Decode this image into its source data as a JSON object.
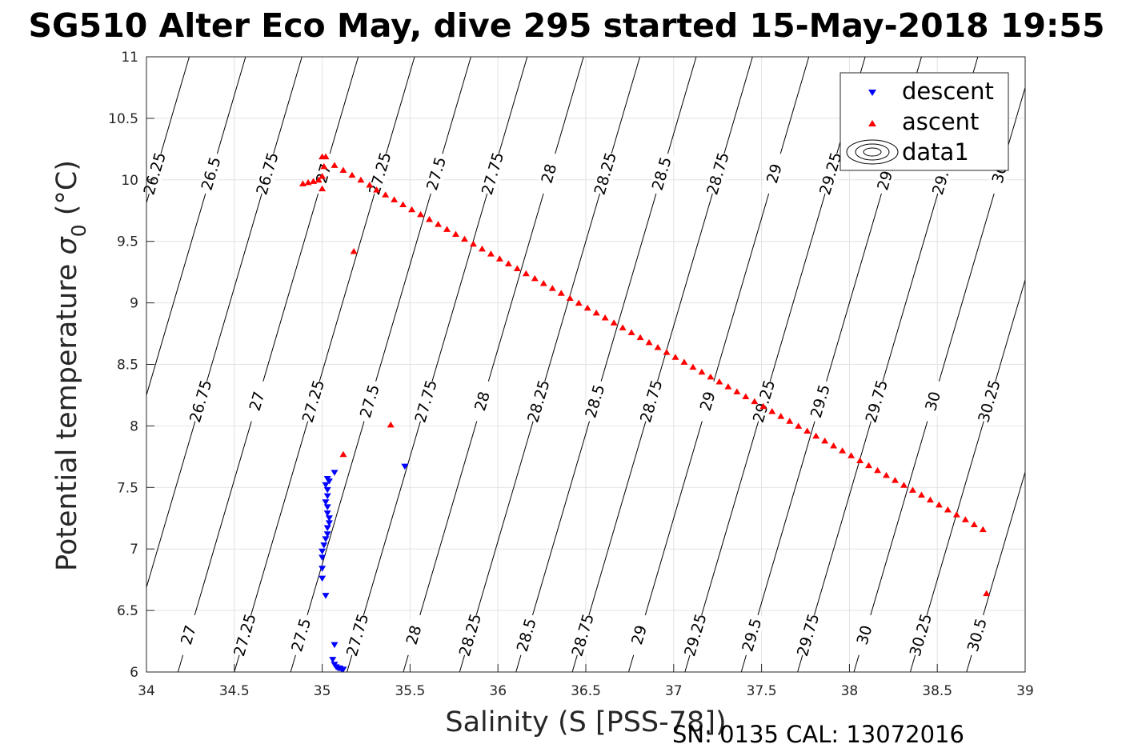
{
  "chart_data": {
    "type": "scatter",
    "title": "SG510 Alter Eco May, dive 295 started 15-May-2018 19:55",
    "xlabel": "Salinity (S [PSS-78])",
    "ylabel": "Potential temperature σ₀ (°C)",
    "ylabel_main": "Potential temperature ",
    "ylabel_sigma": "σ",
    "ylabel_sub": "0",
    "ylabel_unit": " (°C)",
    "xlim": [
      34,
      39
    ],
    "ylim": [
      6,
      11
    ],
    "grid": true,
    "legend_position": "top-right",
    "footer": "SN: 0135  CAL: 13072016",
    "x_ticks": [
      "34",
      "34.5",
      "35",
      "35.5",
      "36",
      "36.5",
      "37",
      "37.5",
      "38",
      "38.5",
      "39"
    ],
    "y_ticks": [
      "6",
      "6.5",
      "7",
      "7.5",
      "8",
      "8.5",
      "9",
      "9.5",
      "10",
      "10.5",
      "11"
    ],
    "legend": [
      {
        "name": "descent",
        "marker": "triangle-down",
        "color": "#0000ff"
      },
      {
        "name": "ascent",
        "marker": "triangle-up",
        "color": "#ff0000"
      },
      {
        "name": "data1",
        "marker": "contour",
        "color": "#000000"
      }
    ],
    "contours": {
      "levels": [
        "26.25",
        "26.5",
        "26.75",
        "27",
        "27.25",
        "27.5",
        "27.75",
        "28",
        "28.25",
        "28.5",
        "28.75",
        "29",
        "29.25",
        "29.5",
        "29.75",
        "30",
        "30.25",
        "30.5"
      ],
      "color": "#000000"
    },
    "series": [
      {
        "name": "descent",
        "color": "#0000ff",
        "marker": "triangle-down",
        "points": [
          [
            35.47,
            7.67
          ],
          [
            35.07,
            7.62
          ],
          [
            35.03,
            7.57
          ],
          [
            35.04,
            7.55
          ],
          [
            35.02,
            7.52
          ],
          [
            35.03,
            7.48
          ],
          [
            35.03,
            7.43
          ],
          [
            35.02,
            7.38
          ],
          [
            35.03,
            7.34
          ],
          [
            35.03,
            7.29
          ],
          [
            35.04,
            7.25
          ],
          [
            35.04,
            7.21
          ],
          [
            35.03,
            7.17
          ],
          [
            35.03,
            7.12
          ],
          [
            35.02,
            7.08
          ],
          [
            35.01,
            7.03
          ],
          [
            35.0,
            6.98
          ],
          [
            35.0,
            6.93
          ],
          [
            35.0,
            6.84
          ],
          [
            35.0,
            6.76
          ],
          [
            35.02,
            6.62
          ],
          [
            35.07,
            6.22
          ],
          [
            35.06,
            6.1
          ],
          [
            35.07,
            6.06
          ],
          [
            35.08,
            6.04
          ],
          [
            35.09,
            6.03
          ],
          [
            35.1,
            6.03
          ],
          [
            35.11,
            6.02
          ],
          [
            35.12,
            6.02
          ]
        ]
      },
      {
        "name": "ascent",
        "color": "#ff0000",
        "marker": "triangle-up",
        "points": [
          [
            35.0,
            10.19
          ],
          [
            35.02,
            10.19
          ],
          [
            35.01,
            10.11
          ],
          [
            35.0,
            10.03
          ],
          [
            34.98,
            10.0
          ],
          [
            34.95,
            9.99
          ],
          [
            34.92,
            9.98
          ],
          [
            34.89,
            9.97
          ],
          [
            35.0,
            9.93
          ],
          [
            35.12,
            7.77
          ],
          [
            35.39,
            8.01
          ],
          [
            35.18,
            9.42
          ],
          [
            35.07,
            10.12
          ],
          [
            35.12,
            10.08
          ],
          [
            35.17,
            10.04
          ],
          [
            35.22,
            10.0
          ],
          [
            35.27,
            9.96
          ],
          [
            35.31,
            9.92
          ],
          [
            35.36,
            9.88
          ],
          [
            35.41,
            9.84
          ],
          [
            35.46,
            9.8
          ],
          [
            35.51,
            9.76
          ],
          [
            35.56,
            9.72
          ],
          [
            35.61,
            9.68
          ],
          [
            35.66,
            9.64
          ],
          [
            35.71,
            9.6
          ],
          [
            35.76,
            9.56
          ],
          [
            35.81,
            9.52
          ],
          [
            35.86,
            9.48
          ],
          [
            35.91,
            9.44
          ],
          [
            35.96,
            9.4
          ],
          [
            36.01,
            9.36
          ],
          [
            36.06,
            9.32
          ],
          [
            36.11,
            9.28
          ],
          [
            36.16,
            9.24
          ],
          [
            36.21,
            9.2
          ],
          [
            36.26,
            9.16
          ],
          [
            36.31,
            9.12
          ],
          [
            36.36,
            9.08
          ],
          [
            36.41,
            9.04
          ],
          [
            36.46,
            9.0
          ],
          [
            36.51,
            8.96
          ],
          [
            36.56,
            8.92
          ],
          [
            36.61,
            8.88
          ],
          [
            36.66,
            8.84
          ],
          [
            36.71,
            8.8
          ],
          [
            36.76,
            8.76
          ],
          [
            36.81,
            8.72
          ],
          [
            36.86,
            8.68
          ],
          [
            36.91,
            8.64
          ],
          [
            36.96,
            8.6
          ],
          [
            37.01,
            8.56
          ],
          [
            37.06,
            8.52
          ],
          [
            37.11,
            8.48
          ],
          [
            37.16,
            8.44
          ],
          [
            37.21,
            8.4
          ],
          [
            37.26,
            8.36
          ],
          [
            37.31,
            8.32
          ],
          [
            37.36,
            8.28
          ],
          [
            37.41,
            8.24
          ],
          [
            37.46,
            8.2
          ],
          [
            37.51,
            8.16
          ],
          [
            37.56,
            8.12
          ],
          [
            37.61,
            8.08
          ],
          [
            37.66,
            8.04
          ],
          [
            37.71,
            8.0
          ],
          [
            37.76,
            7.96
          ],
          [
            37.81,
            7.92
          ],
          [
            37.86,
            7.88
          ],
          [
            37.91,
            7.84
          ],
          [
            37.96,
            7.8
          ],
          [
            38.01,
            7.76
          ],
          [
            38.06,
            7.72
          ],
          [
            38.11,
            7.68
          ],
          [
            38.16,
            7.64
          ],
          [
            38.21,
            7.6
          ],
          [
            38.26,
            7.56
          ],
          [
            38.31,
            7.52
          ],
          [
            38.36,
            7.48
          ],
          [
            38.41,
            7.44
          ],
          [
            38.46,
            7.4
          ],
          [
            38.51,
            7.36
          ],
          [
            38.56,
            7.32
          ],
          [
            38.61,
            7.28
          ],
          [
            38.66,
            7.24
          ],
          [
            38.71,
            7.2
          ],
          [
            38.76,
            7.16
          ],
          [
            38.78,
            6.64
          ]
        ]
      }
    ]
  }
}
